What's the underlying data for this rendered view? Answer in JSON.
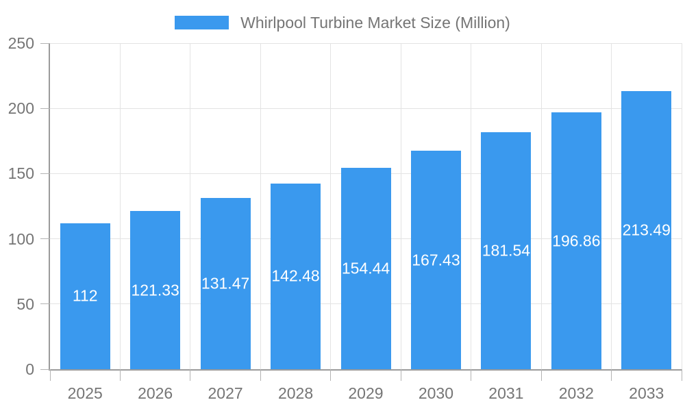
{
  "chart_data": {
    "type": "bar",
    "title": "Whirlpool Turbine Market Size (Million)",
    "legend_position": "top",
    "categories": [
      "2025",
      "2026",
      "2027",
      "2028",
      "2029",
      "2030",
      "2031",
      "2032",
      "2033"
    ],
    "values": [
      112,
      121.33,
      131.47,
      142.48,
      154.44,
      167.43,
      181.54,
      196.86,
      213.49
    ],
    "value_labels": [
      "112",
      "121.33",
      "131.47",
      "142.48",
      "154.44",
      "167.43",
      "181.54",
      "196.86",
      "213.49"
    ],
    "xlabel": "",
    "ylabel": "",
    "ylim": [
      0,
      250
    ],
    "yticks": [
      0,
      50,
      100,
      150,
      200,
      250
    ],
    "grid": true,
    "bar_color": "#3a99ee",
    "value_label_color": "#ffffff"
  },
  "colors": {
    "background": "#ffffff",
    "axis": "#9b9b9b",
    "grid": "#e3e3e3",
    "tick": "#b3b3b3",
    "text": "#757575"
  }
}
